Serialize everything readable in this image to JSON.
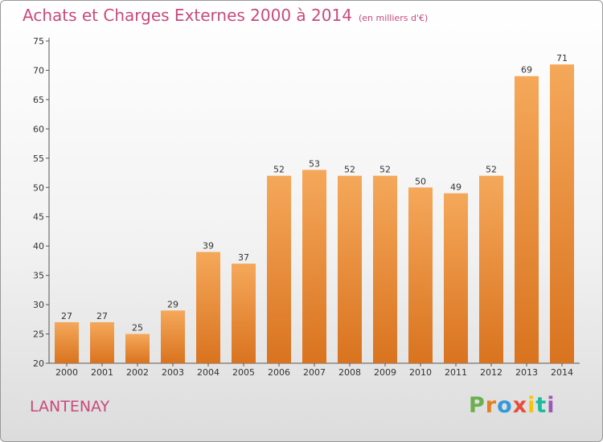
{
  "header": {
    "title": "Achats et Charges Externes 2000 à 2014",
    "unit": "(en milliers d'€)"
  },
  "footer": {
    "town": "LANTENAY",
    "logo": [
      "P",
      "r",
      "o",
      "x",
      "i",
      "t",
      "i"
    ]
  },
  "colors": {
    "title": "#c84a7a",
    "bar_light": "#f5a85a",
    "bar_dark": "#d9731f",
    "logo": [
      "#6ab04c",
      "#e67e22",
      "#3498db",
      "#e74c3c",
      "#f1c40f",
      "#1abc9c",
      "#9b59b6"
    ]
  },
  "chart_data": {
    "type": "bar",
    "title": "Achats et Charges Externes 2000 à 2014",
    "subtitle": "(en milliers d'€)",
    "xlabel": "",
    "ylabel": "",
    "categories": [
      "2000",
      "2001",
      "2002",
      "2003",
      "2004",
      "2005",
      "2006",
      "2007",
      "2008",
      "2009",
      "2010",
      "2011",
      "2012",
      "2013",
      "2014"
    ],
    "values": [
      27,
      27,
      25,
      29,
      39,
      37,
      52,
      53,
      52,
      52,
      50,
      49,
      52,
      69,
      71
    ],
    "ylim": [
      20,
      75
    ],
    "yticks": [
      20,
      25,
      30,
      35,
      40,
      45,
      50,
      55,
      60,
      65,
      70,
      75
    ],
    "grid": false,
    "legend": "none",
    "data_labels": true
  }
}
